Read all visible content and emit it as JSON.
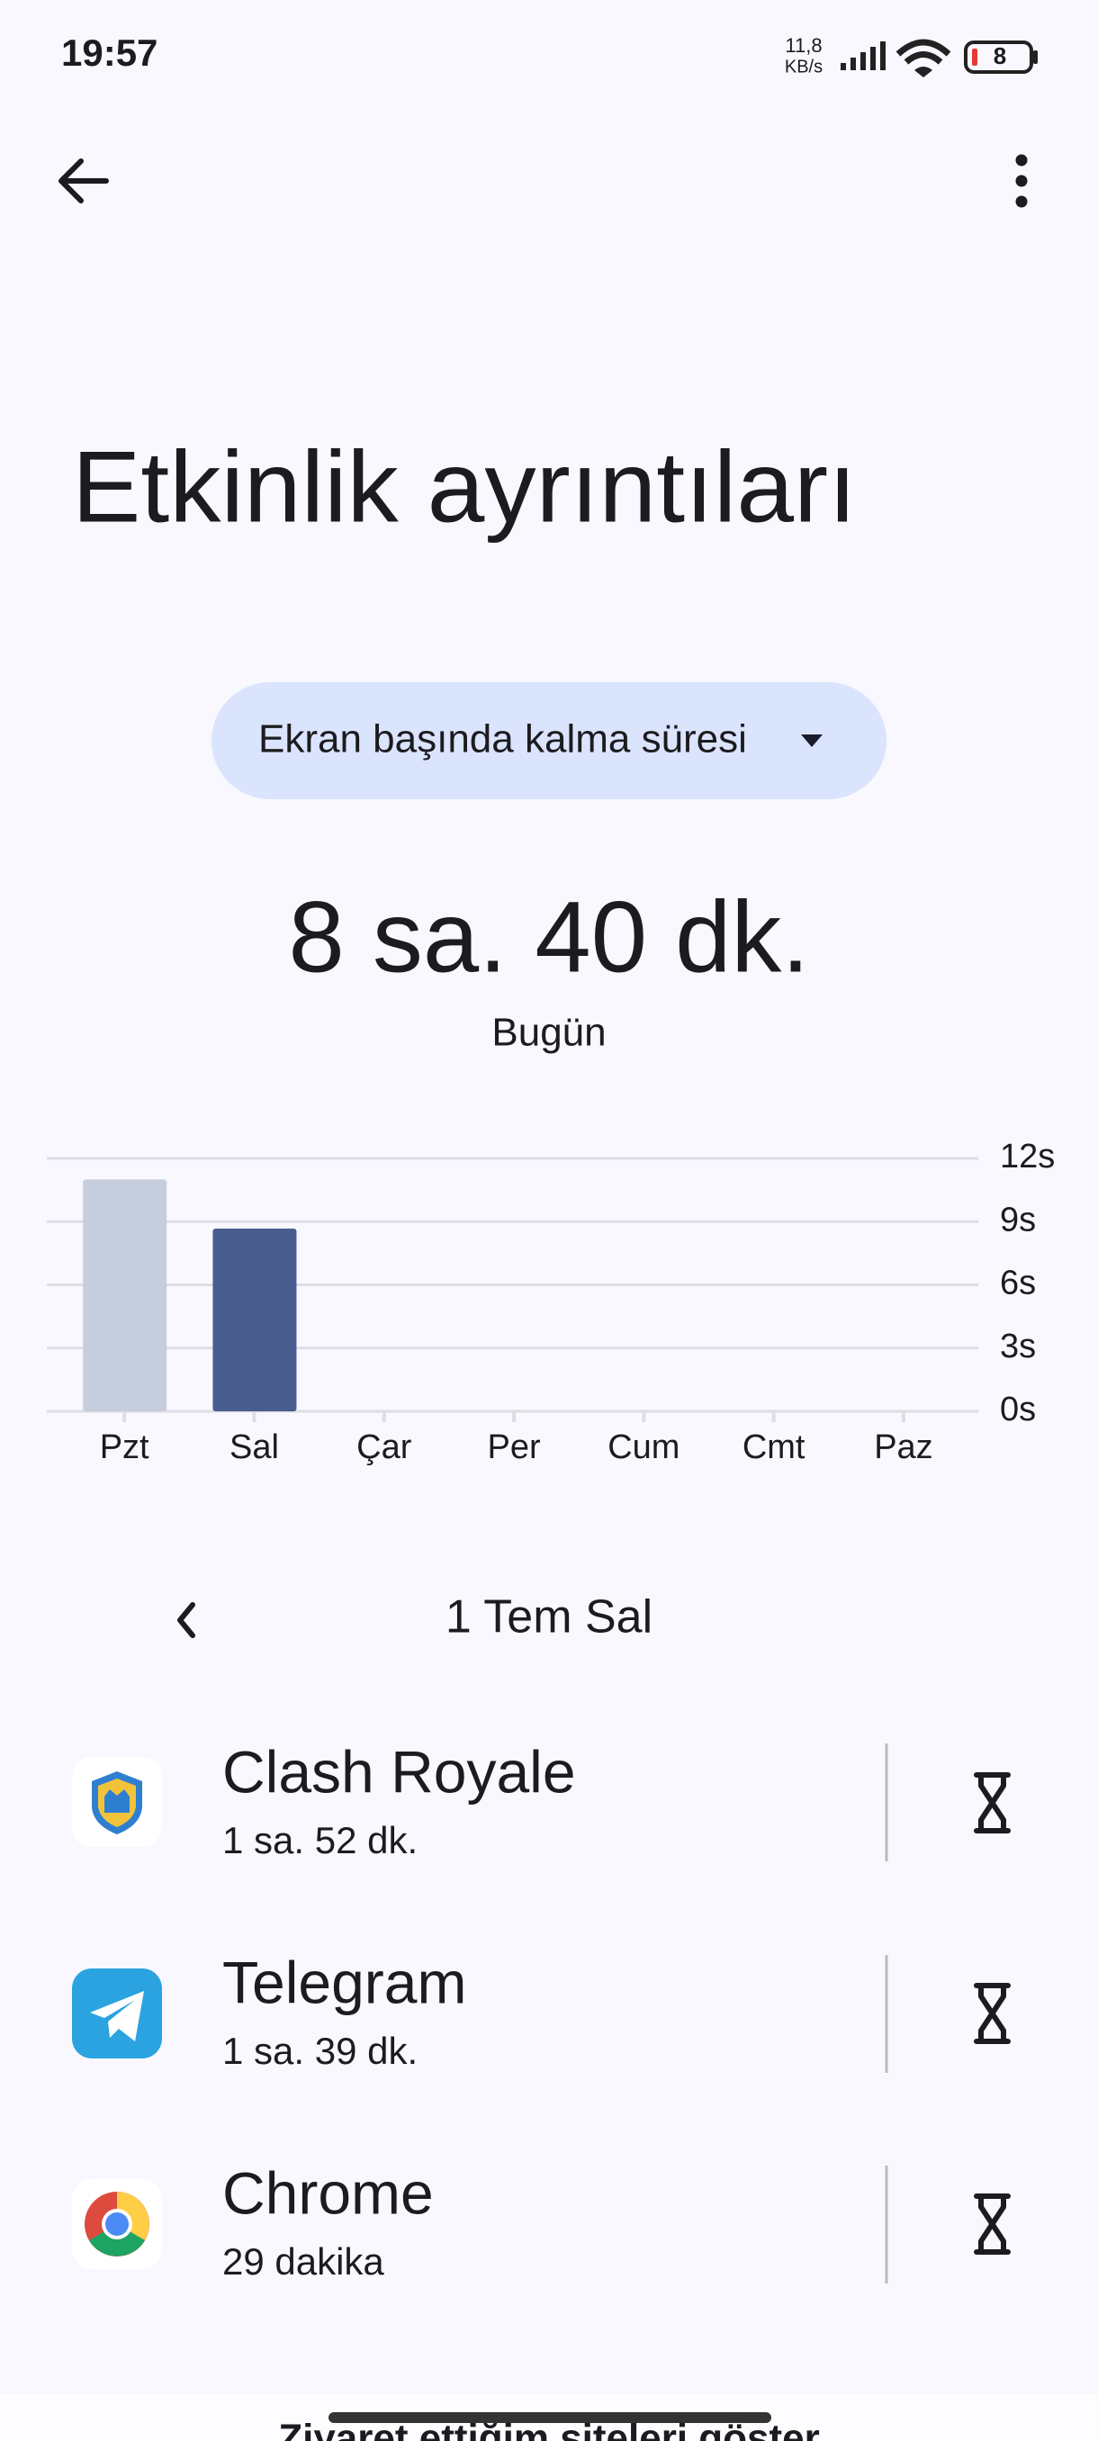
{
  "status_bar": {
    "time": "19:57",
    "net_speed": "11,8",
    "net_unit": "KB/s",
    "battery": "8"
  },
  "header": {
    "title": "Etkinlik ayrıntıları"
  },
  "selector": {
    "label": "Ekran başında kalma süresi"
  },
  "summary": {
    "total": "8 sa. 40 dk.",
    "period": "Bugün"
  },
  "chart_data": {
    "type": "bar",
    "categories": [
      "Pzt",
      "Sal",
      "Çar",
      "Per",
      "Cum",
      "Cmt",
      "Paz"
    ],
    "values": [
      11,
      8.67,
      null,
      null,
      null,
      null,
      null
    ],
    "colors": [
      "#c6cedd",
      "#495d8f",
      "#c6cedd",
      "#c6cedd",
      "#c6cedd",
      "#c6cedd",
      "#c6cedd"
    ],
    "ylim": [
      0,
      12
    ],
    "yticks": [
      {
        "value": 0,
        "label": "0s"
      },
      {
        "value": 3,
        "label": "3s"
      },
      {
        "value": 6,
        "label": "6s"
      },
      {
        "value": 9,
        "label": "9s"
      },
      {
        "value": 12,
        "label": "12s"
      }
    ],
    "grid": true
  },
  "date_nav": {
    "label": "1 Tem Sal"
  },
  "apps": [
    {
      "name": "Clash Royale",
      "duration": "1 sa. 52 dk."
    },
    {
      "name": "Telegram",
      "duration": "1 sa. 39 dk."
    },
    {
      "name": "Chrome",
      "duration": "29 dakika"
    }
  ],
  "footer": {
    "link": "Ziyaret ettiğim siteleri göster"
  }
}
